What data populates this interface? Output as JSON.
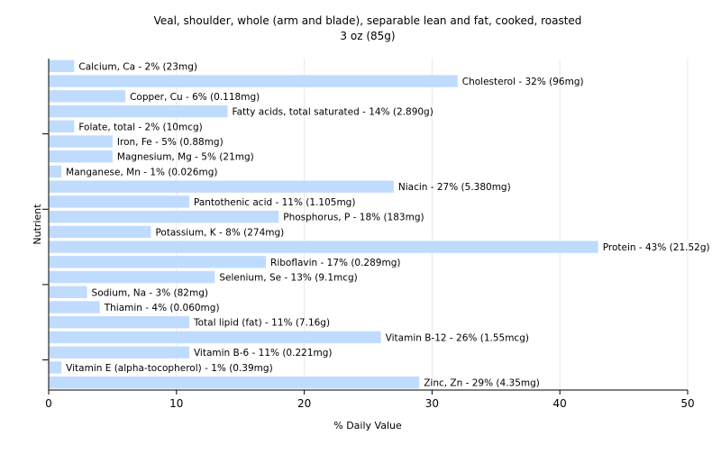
{
  "chart_data": {
    "type": "bar",
    "orientation": "horizontal",
    "title": "Veal, shoulder, whole (arm and blade), separable lean and fat, cooked, roasted",
    "subtitle": "3 oz (85g)",
    "xlabel": "% Daily Value",
    "ylabel": "Nutrient",
    "xlim": [
      0,
      50
    ],
    "xticks": [
      0,
      10,
      20,
      30,
      40,
      50
    ],
    "grid": true,
    "bar_color": "#bfdcff",
    "categories": [
      "Calcium, Ca",
      "Cholesterol",
      "Copper, Cu",
      "Fatty acids, total saturated",
      "Folate, total",
      "Iron, Fe",
      "Magnesium, Mg",
      "Manganese, Mn",
      "Niacin",
      "Pantothenic acid",
      "Phosphorus, P",
      "Potassium, K",
      "Protein",
      "Riboflavin",
      "Selenium, Se",
      "Sodium, Na",
      "Thiamin",
      "Total lipid (fat)",
      "Vitamin B-12",
      "Vitamin B-6",
      "Vitamin E (alpha-tocopherol)",
      "Zinc, Zn"
    ],
    "values": [
      2,
      32,
      6,
      14,
      2,
      5,
      5,
      1,
      27,
      11,
      18,
      8,
      43,
      17,
      13,
      3,
      4,
      11,
      26,
      11,
      1,
      29
    ],
    "labels": [
      "Calcium, Ca - 2% (23mg)",
      "Cholesterol - 32% (96mg)",
      "Copper, Cu - 6% (0.118mg)",
      "Fatty acids, total saturated - 14% (2.890g)",
      "Folate, total - 2% (10mcg)",
      "Iron, Fe - 5% (0.88mg)",
      "Magnesium, Mg - 5% (21mg)",
      "Manganese, Mn - 1% (0.026mg)",
      "Niacin - 27% (5.380mg)",
      "Pantothenic acid - 11% (1.105mg)",
      "Phosphorus, P - 18% (183mg)",
      "Potassium, K - 8% (274mg)",
      "Protein - 43% (21.52g)",
      "Riboflavin - 17% (0.289mg)",
      "Selenium, Se - 13% (9.1mcg)",
      "Sodium, Na - 3% (82mg)",
      "Thiamin - 4% (0.060mg)",
      "Total lipid (fat) - 11% (7.16g)",
      "Vitamin B-12 - 26% (1.55mcg)",
      "Vitamin B-6 - 11% (0.221mg)",
      "Vitamin E (alpha-tocopherol) - 1% (0.39mg)",
      "Zinc, Zn - 29% (4.35mg)"
    ]
  }
}
